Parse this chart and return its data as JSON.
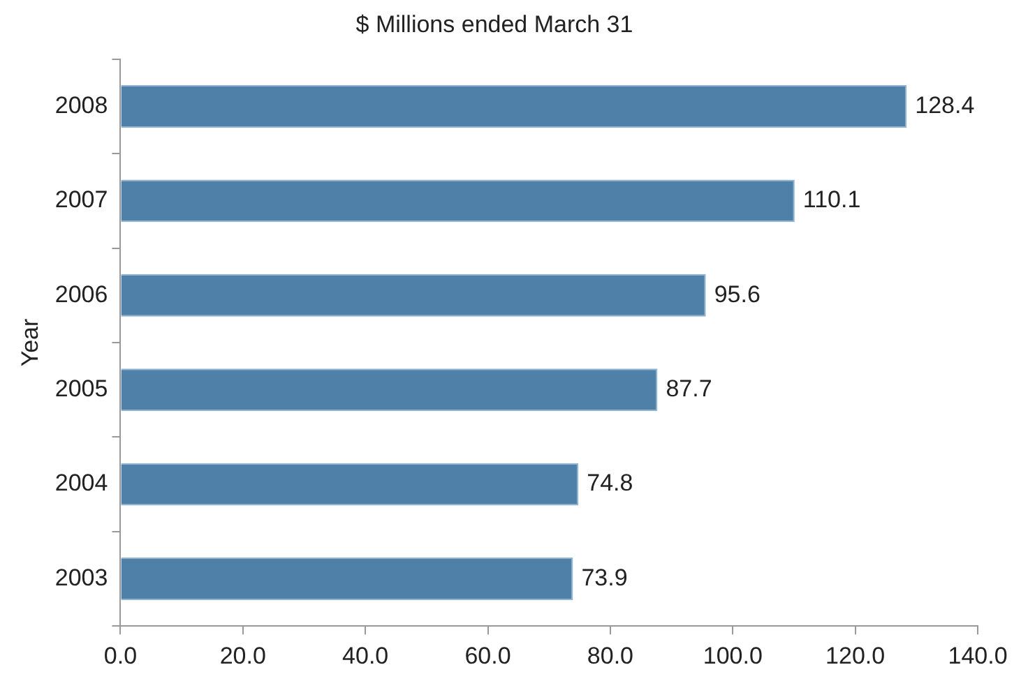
{
  "chart_data": {
    "type": "bar",
    "orientation": "horizontal",
    "title": "$ Millions ended March 31",
    "ylabel": "Year",
    "categories": [
      "2008",
      "2007",
      "2006",
      "2005",
      "2004",
      "2003"
    ],
    "values": [
      128.4,
      110.1,
      95.6,
      87.7,
      74.8,
      73.9
    ],
    "color": "#4f81a8",
    "xlim": [
      0,
      140
    ],
    "xticks": [
      {
        "value": 0,
        "label": "0.0"
      },
      {
        "value": 20,
        "label": "20.0"
      },
      {
        "value": 40,
        "label": "40.0"
      },
      {
        "value": 60,
        "label": "60.0"
      },
      {
        "value": 80,
        "label": "80.0"
      },
      {
        "value": 100,
        "label": "100.0"
      },
      {
        "value": 120,
        "label": "120.0"
      },
      {
        "value": 140,
        "label": "140.0"
      }
    ],
    "grid": false,
    "legend": false,
    "data_labels": true
  }
}
